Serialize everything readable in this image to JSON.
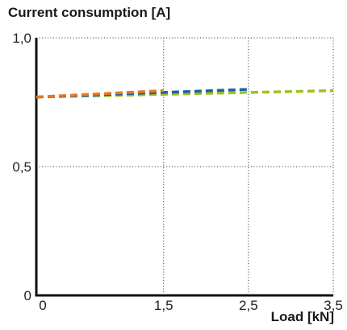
{
  "chart_data": {
    "type": "line",
    "title": "",
    "ylabel": "Current consumption [A]",
    "xlabel": "Load [kN]",
    "x_ticks": [
      "0",
      "1,5",
      "2,5",
      "3,5"
    ],
    "y_ticks": [
      "0",
      "0,5",
      "1,0"
    ],
    "x_tick_values": [
      0,
      1.5,
      2.5,
      3.5
    ],
    "y_tick_values": [
      0,
      0.5,
      1.0
    ],
    "xlim": [
      0,
      3.5
    ],
    "ylim": [
      0,
      1.0
    ],
    "grid": true,
    "series": [
      {
        "color": "#e87722",
        "points": [
          [
            0,
            0.77
          ],
          [
            1.5,
            0.795
          ]
        ]
      },
      {
        "color": "#1f5fa8",
        "points": [
          [
            0,
            0.77
          ],
          [
            2.5,
            0.8
          ]
        ]
      },
      {
        "color": "#9bc31c",
        "points": [
          [
            0,
            0.77
          ],
          [
            3.5,
            0.795
          ]
        ]
      }
    ]
  }
}
